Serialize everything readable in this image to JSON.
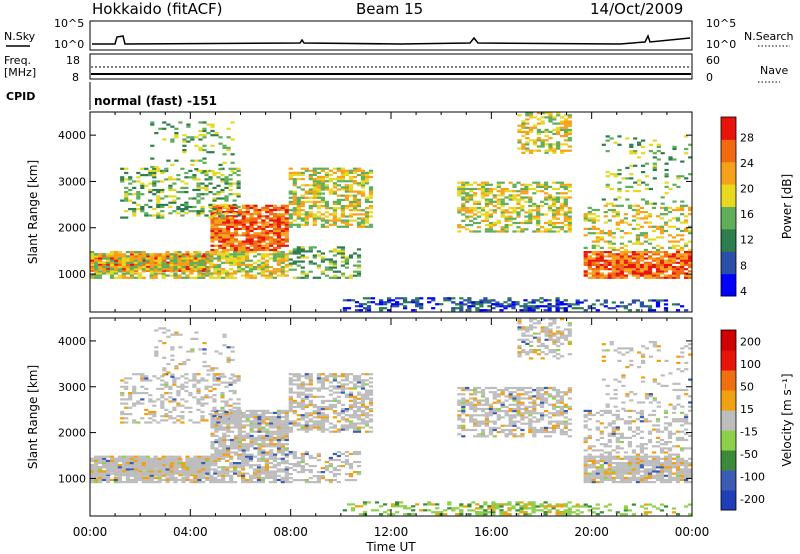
{
  "header": {
    "station": "Hokkaido (fitACF)",
    "beam": "Beam 15",
    "date": "14/Oct/2009"
  },
  "status_panels": {
    "nsky_label": "N.Sky",
    "nsky_ticks": [
      "10^5",
      "10^0"
    ],
    "nsearch_label": "N.Search",
    "nsearch_ticks": [
      "10^5",
      "10^0"
    ],
    "freq_label_1": "Freq.",
    "freq_label_2": "[MHz]",
    "freq_ticks": [
      "18",
      "8"
    ],
    "nave_label": "Nave",
    "nave_ticks": [
      "60",
      "0"
    ],
    "cpid_label": "CPID",
    "cpid_text": "normal (fast) -151"
  },
  "chart_data": [
    {
      "type": "heatmap",
      "name": "power",
      "ylabel": "Slant Range [km]",
      "yticks": [
        "4000",
        "3000",
        "2000",
        "1000"
      ],
      "colorbar_label": "Power [dB]",
      "colorbar_ticks": [
        "28",
        "24",
        "20",
        "16",
        "12",
        "8",
        "4"
      ],
      "colors": [
        "#0000ff",
        "#2a4fa8",
        "#2e7d4f",
        "#5fae5a",
        "#e8d820",
        "#f5a21a",
        "#f26a10",
        "#e8140b"
      ],
      "ylim": [
        180,
        4500
      ]
    },
    {
      "type": "heatmap",
      "name": "velocity",
      "ylabel": "Slant Range [km]",
      "yticks": [
        "4000",
        "3000",
        "2000",
        "1000"
      ],
      "colorbar_label": "Velocity [m s⁻¹]",
      "colorbar_ticks": [
        "200",
        "100",
        "50",
        "15",
        "-15",
        "-50",
        "-100",
        "-200"
      ],
      "colors": [
        "#1f3fb8",
        "#3b5bb5",
        "#3a8a3a",
        "#8ed04a",
        "#bdbdbd",
        "#f0a010",
        "#f07010",
        "#e8140b",
        "#d00000"
      ],
      "ylim": [
        180,
        4500
      ]
    }
  ],
  "xaxis": {
    "ticks": [
      "00:00",
      "04:00",
      "08:00",
      "12:00",
      "16:00",
      "20:00",
      "00:00"
    ],
    "label": "Time UT"
  }
}
